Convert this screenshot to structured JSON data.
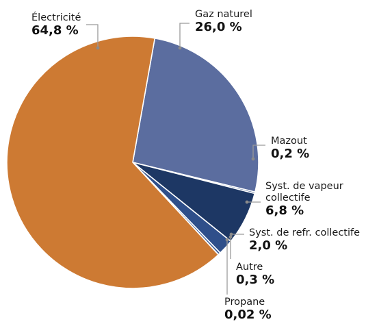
{
  "chart_data": {
    "type": "pie",
    "title": "",
    "slices": [
      {
        "name": "Électricité",
        "value": 64.8,
        "value_label": "64,8 %",
        "color": "#cd7a33"
      },
      {
        "name": "Gaz naturel",
        "value": 26.0,
        "value_label": "26,0 %",
        "color": "#5b6d9f"
      },
      {
        "name": "Mazout",
        "value": 0.2,
        "value_label": "0,2 %",
        "color": "#3e5a8c"
      },
      {
        "name": "Syst. de vapeur collectife",
        "name_lines": [
          "Syst. de vapeur",
          "collectife"
        ],
        "value": 6.8,
        "value_label": "6,8 %",
        "color": "#1d3764"
      },
      {
        "name": "Syst. de refr. collectife",
        "value": 2.0,
        "value_label": "2,0 %",
        "color": "#2f4f8a"
      },
      {
        "name": "Autre",
        "value": 0.3,
        "value_label": "0,3 %",
        "color": "#3f5f97"
      },
      {
        "name": "Propane",
        "value": 0.02,
        "value_label": "0,02 %",
        "color": "#6a7fb0"
      }
    ]
  }
}
